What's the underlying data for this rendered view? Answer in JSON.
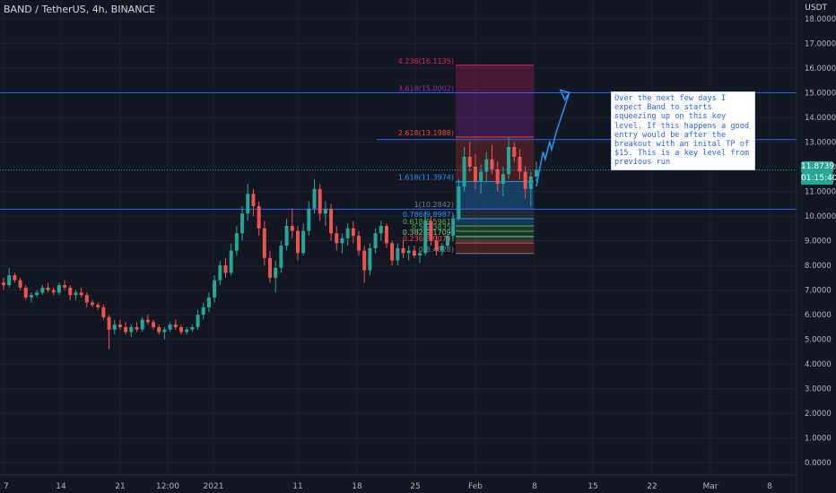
{
  "chart_data": {
    "type": "candlestick",
    "title": "BAND / TetherUS, 4h, BINANCE",
    "ylabel": "USDT",
    "ylim": [
      -0.5,
      18.25
    ],
    "y_ticks": [
      "0.0000",
      "1.0000",
      "2.0000",
      "3.0000",
      "4.0000",
      "5.0000",
      "6.0000",
      "7.0000",
      "8.0000",
      "9.0000",
      "10.0000",
      "11.0000",
      "12.0000",
      "13.0000",
      "14.0000",
      "15.0000",
      "16.0000",
      "17.0000",
      "18.0000"
    ],
    "x_ticks": [
      "7",
      "14",
      "21",
      "12:00",
      "2021",
      "11",
      "18",
      "25",
      "Feb",
      "8",
      "15",
      "22",
      "Mar",
      "8"
    ],
    "last_price": "11.8739",
    "countdown": "01:15:40",
    "horizontal_levels": [
      15.0,
      13.1,
      10.28
    ],
    "last_price_line": 11.87,
    "fib_labels": [
      {
        "text": "4.236(16.1135)",
        "value": 16.1135,
        "color": "#e91e63"
      },
      {
        "text": "3.618(15.0002)",
        "value": 15.0002,
        "color": "#9c27b0"
      },
      {
        "text": "2.618(13.1988)",
        "value": 13.1988,
        "color": "#f44336"
      },
      {
        "text": "1.618(11.3974)",
        "value": 11.3974,
        "color": "#2196f3"
      },
      {
        "text": "1(10.2842)",
        "value": 10.2842,
        "color": "#787b86"
      },
      {
        "text": "0.786(9.8987)",
        "value": 9.8987,
        "color": "#2196f3"
      },
      {
        "text": "0.618(9.5961)",
        "value": 9.5961,
        "color": "#4caf50"
      },
      {
        "text": "0.5(9.3835)",
        "value": 9.3835,
        "color": "#4caf50"
      },
      {
        "text": "0.382(9.1709)",
        "value": 9.1709,
        "color": "#81c784"
      },
      {
        "text": "0.236(8.9079)",
        "value": 8.9079,
        "color": "#f44336"
      },
      {
        "text": "0(8.4828)",
        "value": 8.4828,
        "color": "#787b86"
      }
    ],
    "annotation": "Over the next few days I expect Band to starts squeezing up on this key level. If this happens a good entry would be after the breakout with an inital TP of $15. This is a key level from previous run",
    "projection_path": [
      [
        11.2,
        0
      ],
      [
        12.6,
        3
      ],
      [
        12.3,
        4
      ],
      [
        13.0,
        6
      ],
      [
        12.7,
        7
      ],
      [
        13.4,
        9
      ],
      [
        15.0,
        15
      ]
    ],
    "series": [
      {
        "values": [
          [
            7.3,
            7.5,
            7.0,
            7.2
          ],
          [
            7.2,
            7.9,
            7.1,
            7.6
          ],
          [
            7.6,
            7.7,
            7.3,
            7.4
          ],
          [
            7.4,
            7.5,
            7.0,
            7.1
          ],
          [
            7.1,
            7.2,
            6.6,
            6.7
          ],
          [
            6.7,
            6.9,
            6.5,
            6.8
          ],
          [
            6.8,
            7.0,
            6.7,
            6.9
          ],
          [
            6.9,
            7.2,
            6.8,
            7.1
          ],
          [
            7.1,
            7.3,
            6.9,
            7.0
          ],
          [
            7.0,
            7.1,
            6.8,
            6.9
          ],
          [
            6.9,
            7.3,
            6.8,
            7.2
          ],
          [
            7.2,
            7.4,
            7.0,
            7.1
          ],
          [
            7.1,
            7.2,
            6.6,
            6.8
          ],
          [
            6.8,
            7.0,
            6.6,
            6.9
          ],
          [
            6.9,
            7.1,
            6.7,
            6.8
          ],
          [
            6.8,
            6.9,
            6.3,
            6.5
          ],
          [
            6.5,
            6.6,
            6.3,
            6.4
          ],
          [
            6.4,
            6.5,
            6.2,
            6.3
          ],
          [
            6.3,
            6.4,
            5.8,
            5.9
          ],
          [
            5.9,
            6.0,
            4.6,
            5.4
          ],
          [
            5.4,
            5.8,
            5.2,
            5.6
          ],
          [
            5.6,
            5.8,
            5.4,
            5.5
          ],
          [
            5.5,
            5.7,
            5.2,
            5.3
          ],
          [
            5.3,
            5.6,
            5.1,
            5.5
          ],
          [
            5.5,
            5.7,
            5.3,
            5.4
          ],
          [
            5.4,
            5.9,
            5.3,
            5.8
          ],
          [
            5.8,
            6.0,
            5.6,
            5.7
          ],
          [
            5.7,
            5.8,
            5.4,
            5.5
          ],
          [
            5.5,
            5.6,
            5.2,
            5.3
          ],
          [
            5.3,
            5.5,
            5.0,
            5.4
          ],
          [
            5.4,
            5.7,
            5.3,
            5.6
          ],
          [
            5.6,
            5.8,
            5.4,
            5.5
          ],
          [
            5.5,
            5.6,
            5.2,
            5.3
          ],
          [
            5.3,
            5.5,
            5.2,
            5.4
          ],
          [
            5.4,
            5.6,
            5.3,
            5.5
          ],
          [
            5.5,
            6.2,
            5.4,
            6.0
          ],
          [
            6.0,
            6.5,
            5.8,
            6.3
          ],
          [
            6.3,
            6.9,
            6.1,
            6.7
          ],
          [
            6.7,
            7.6,
            6.5,
            7.4
          ],
          [
            7.4,
            8.2,
            7.2,
            8.0
          ],
          [
            8.0,
            8.3,
            7.5,
            7.7
          ],
          [
            7.7,
            8.9,
            7.6,
            8.6
          ],
          [
            8.6,
            9.6,
            8.4,
            9.3
          ],
          [
            9.3,
            10.4,
            9.0,
            10.1
          ],
          [
            10.1,
            11.3,
            9.8,
            10.9
          ],
          [
            10.9,
            11.1,
            10.0,
            10.4
          ],
          [
            10.4,
            10.6,
            9.2,
            9.5
          ],
          [
            9.5,
            9.8,
            8.0,
            8.3
          ],
          [
            8.3,
            8.6,
            7.3,
            7.5
          ],
          [
            7.5,
            8.2,
            6.9,
            7.9
          ],
          [
            7.9,
            9.0,
            7.7,
            8.8
          ],
          [
            8.8,
            9.9,
            8.6,
            9.6
          ],
          [
            9.6,
            10.3,
            9.1,
            9.4
          ],
          [
            9.4,
            9.6,
            8.2,
            8.5
          ],
          [
            8.5,
            9.7,
            8.4,
            9.4
          ],
          [
            9.4,
            10.6,
            9.2,
            10.3
          ],
          [
            10.3,
            11.5,
            10.1,
            11.1
          ],
          [
            11.1,
            11.3,
            9.8,
            10.1
          ],
          [
            10.1,
            10.6,
            9.6,
            10.3
          ],
          [
            10.3,
            10.5,
            9.0,
            9.3
          ],
          [
            9.3,
            9.6,
            8.6,
            8.9
          ],
          [
            8.9,
            9.3,
            8.5,
            9.1
          ],
          [
            9.1,
            9.7,
            8.8,
            9.5
          ],
          [
            9.5,
            9.8,
            8.9,
            9.2
          ],
          [
            9.2,
            9.4,
            8.4,
            8.6
          ],
          [
            8.6,
            8.8,
            7.3,
            7.8
          ],
          [
            7.8,
            8.9,
            7.6,
            8.7
          ],
          [
            8.7,
            9.5,
            8.5,
            9.3
          ],
          [
            9.3,
            9.8,
            9.0,
            9.6
          ],
          [
            9.6,
            9.7,
            8.7,
            8.9
          ],
          [
            8.9,
            9.0,
            8.0,
            8.2
          ],
          [
            8.2,
            8.9,
            8.0,
            8.7
          ],
          [
            8.7,
            9.0,
            8.3,
            8.5
          ],
          [
            8.5,
            8.8,
            8.2,
            8.6
          ],
          [
            8.6,
            8.8,
            8.3,
            8.4
          ],
          [
            8.4,
            8.6,
            8.1,
            8.5
          ],
          [
            8.5,
            10.2,
            8.4,
            9.8
          ],
          [
            9.8,
            10.0,
            8.8,
            9.0
          ],
          [
            9.0,
            9.2,
            8.4,
            8.6
          ],
          [
            8.6,
            8.9,
            8.4,
            8.8
          ],
          [
            8.8,
            9.4,
            8.7,
            9.2
          ],
          [
            9.2,
            10.1,
            9.0,
            9.9
          ],
          [
            9.9,
            11.5,
            9.8,
            11.2
          ],
          [
            11.2,
            12.8,
            11.0,
            12.4
          ],
          [
            12.4,
            13.0,
            11.8,
            12.0
          ],
          [
            12.0,
            12.5,
            11.1,
            11.4
          ],
          [
            11.4,
            12.1,
            10.9,
            11.8
          ],
          [
            11.8,
            12.6,
            11.4,
            12.3
          ],
          [
            12.3,
            12.9,
            11.7,
            11.9
          ],
          [
            11.9,
            12.2,
            11.0,
            11.3
          ],
          [
            11.3,
            12.0,
            10.8,
            11.7
          ],
          [
            11.7,
            13.2,
            11.5,
            12.8
          ],
          [
            12.8,
            13.0,
            12.2,
            12.4
          ],
          [
            12.4,
            12.7,
            11.5,
            11.8
          ],
          [
            11.8,
            12.0,
            10.7,
            11.1
          ],
          [
            11.1,
            11.8,
            10.4,
            11.6
          ],
          [
            11.6,
            12.2,
            11.4,
            11.87
          ]
        ]
      }
    ]
  }
}
